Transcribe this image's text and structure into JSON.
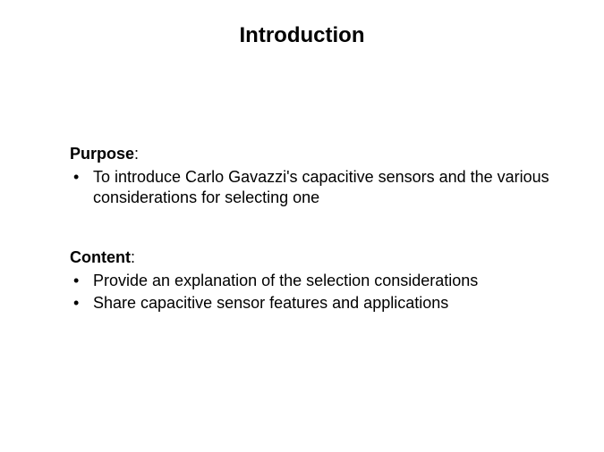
{
  "slide": {
    "title": "Introduction",
    "sections": [
      {
        "heading": "Purpose",
        "bullets": [
          "To introduce Carlo Gavazzi's capacitive sensors and the various considerations for selecting one"
        ]
      },
      {
        "heading": "Content",
        "bullets": [
          "Provide an explanation of the selection considerations",
          "Share capacitive sensor features and applications"
        ]
      }
    ]
  },
  "colors": {
    "background": "#ffffff",
    "text": "#000000"
  },
  "typography": {
    "title_fontsize": 24,
    "title_fontweight": "bold",
    "body_fontsize": 18,
    "font_family": "Arial"
  }
}
